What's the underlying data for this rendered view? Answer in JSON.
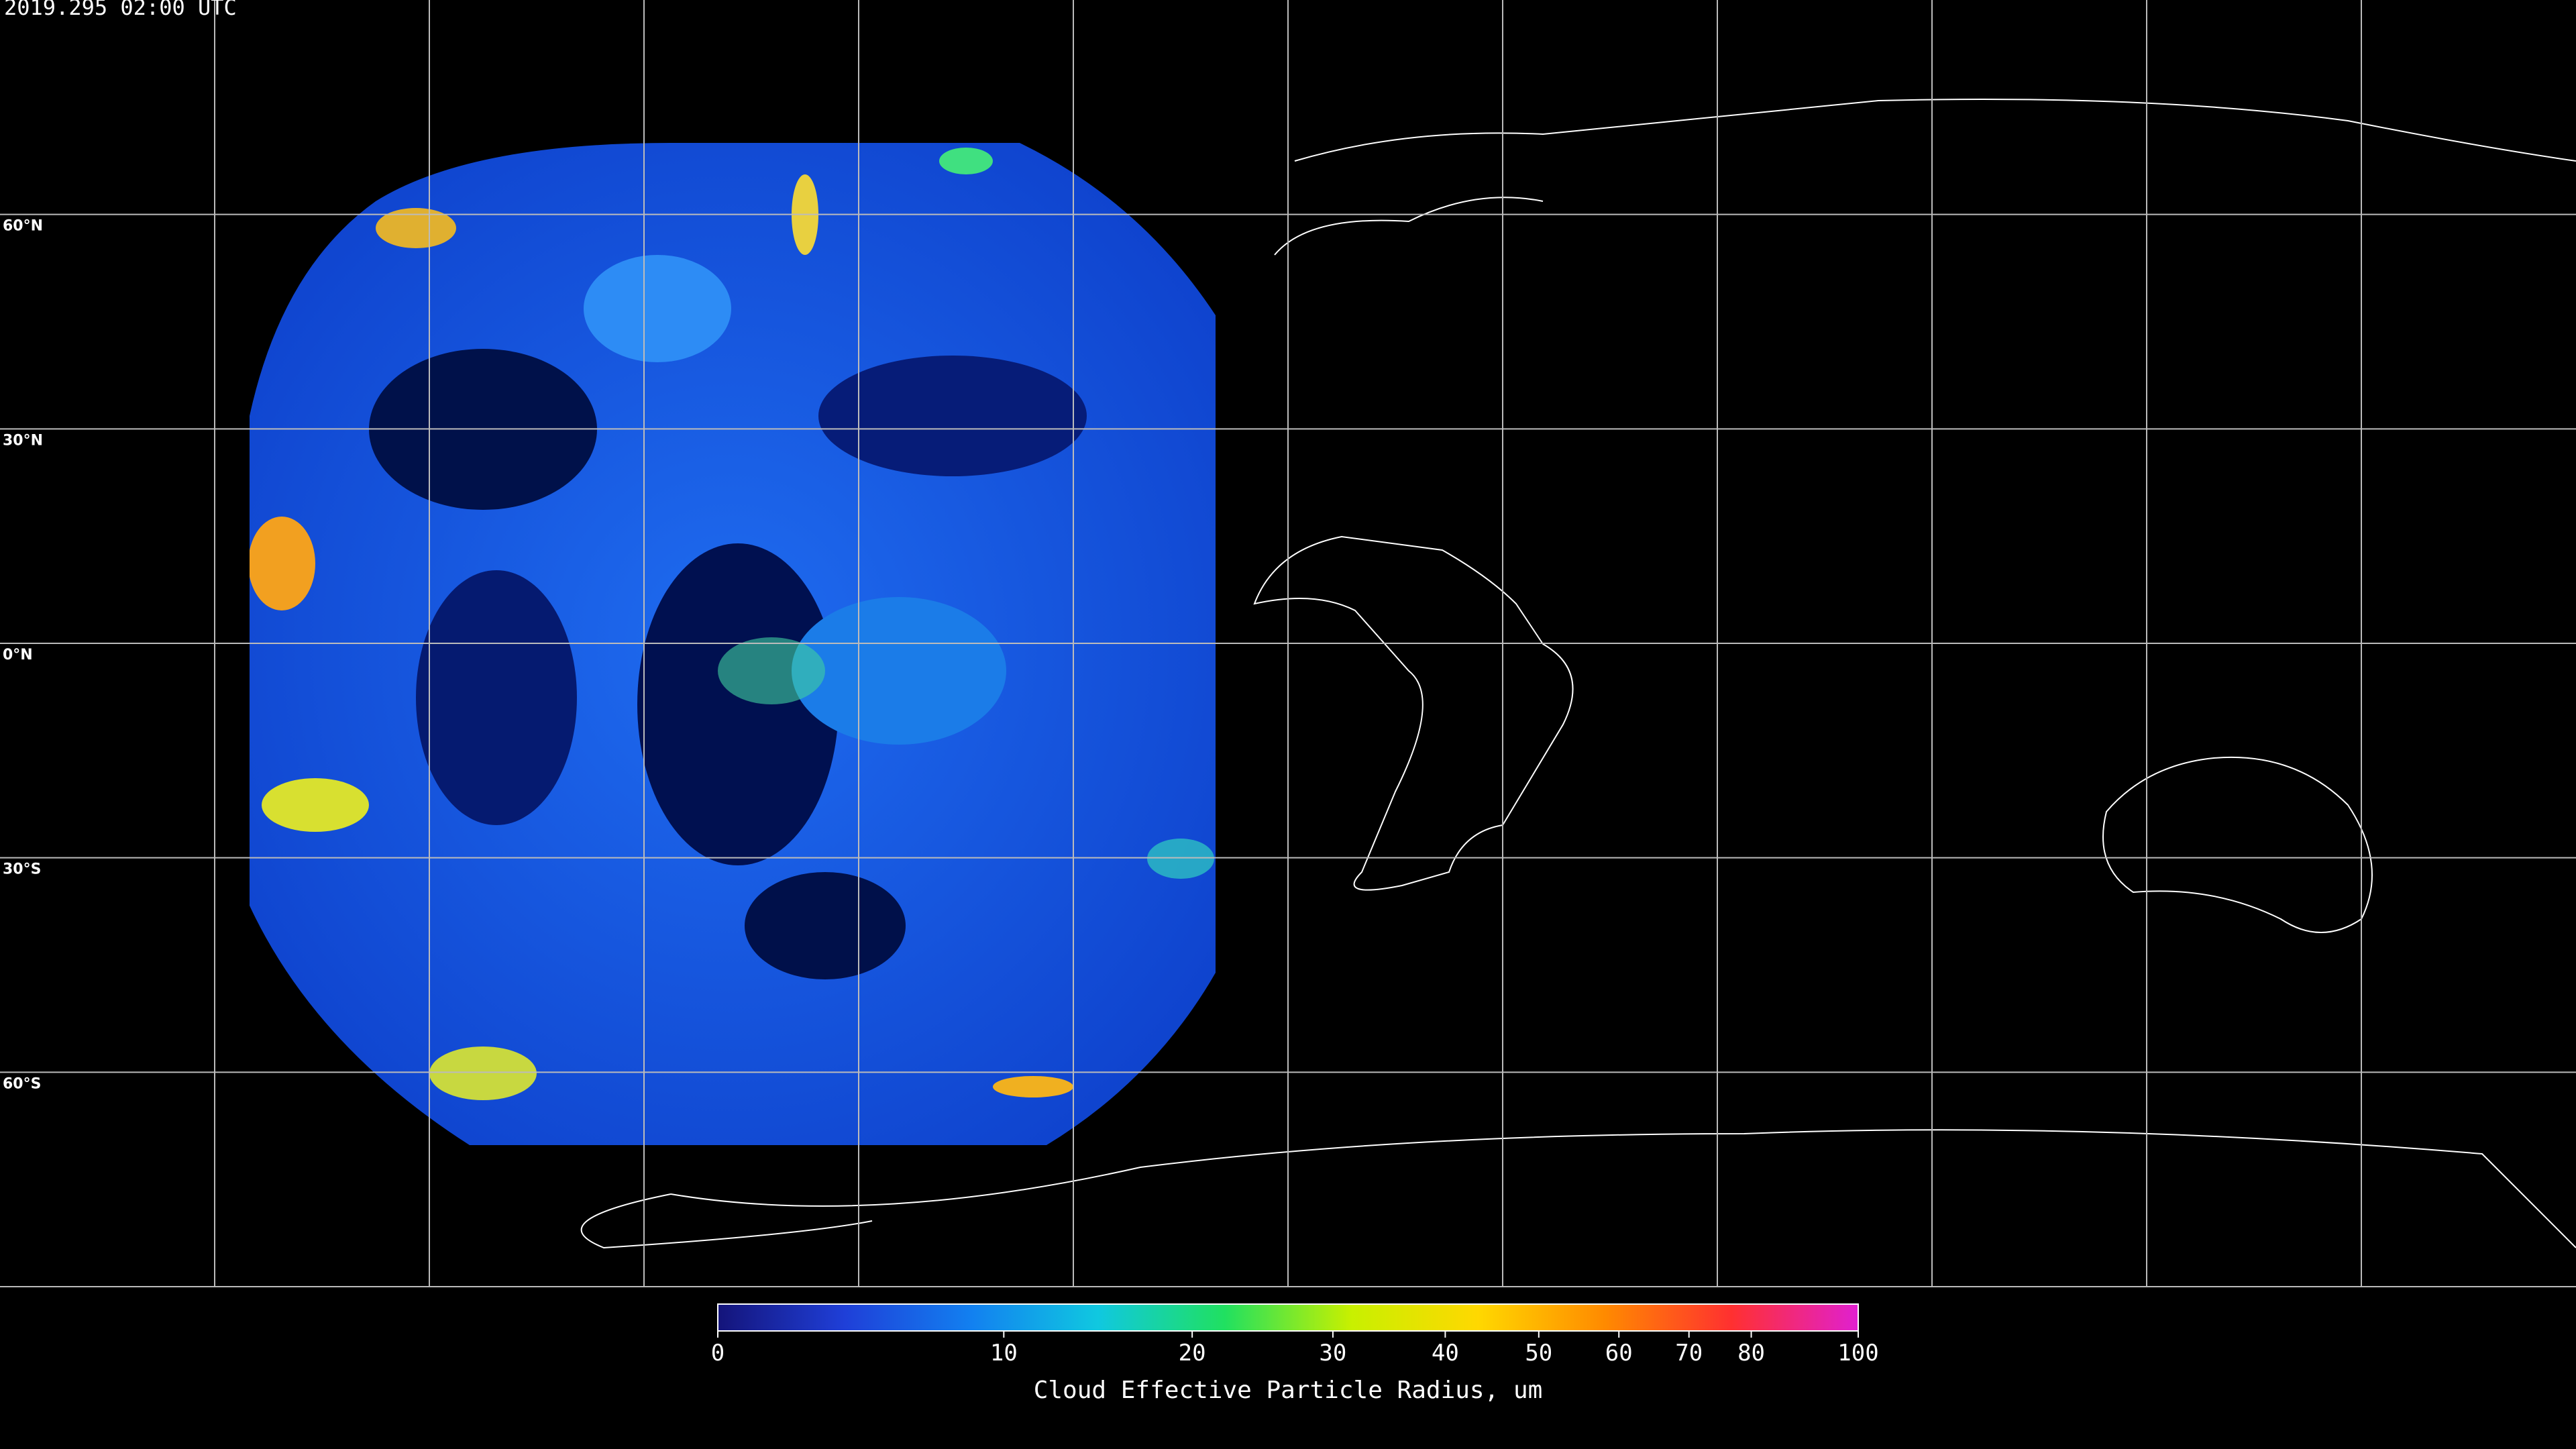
{
  "title": "2019.295 02:00 UTC",
  "map": {
    "latitudes": [
      {
        "value": 60,
        "label": "60°N"
      },
      {
        "value": 30,
        "label": "30°N"
      },
      {
        "value": 0,
        "label": "0°N"
      },
      {
        "value": -30,
        "label": "30°S"
      },
      {
        "value": -60,
        "label": "60°S"
      }
    ]
  },
  "colorbar": {
    "label": "Cloud Effective Particle Radius, um",
    "range": [
      0,
      100
    ],
    "ticks": [
      0,
      10,
      20,
      30,
      40,
      50,
      60,
      70,
      80,
      100
    ],
    "colors": [
      "#14147a",
      "#1f3fd8",
      "#1280f0",
      "#10c8e0",
      "#20e060",
      "#c8f000",
      "#ffd800",
      "#ff8a00",
      "#ff3030",
      "#e020d0"
    ]
  }
}
